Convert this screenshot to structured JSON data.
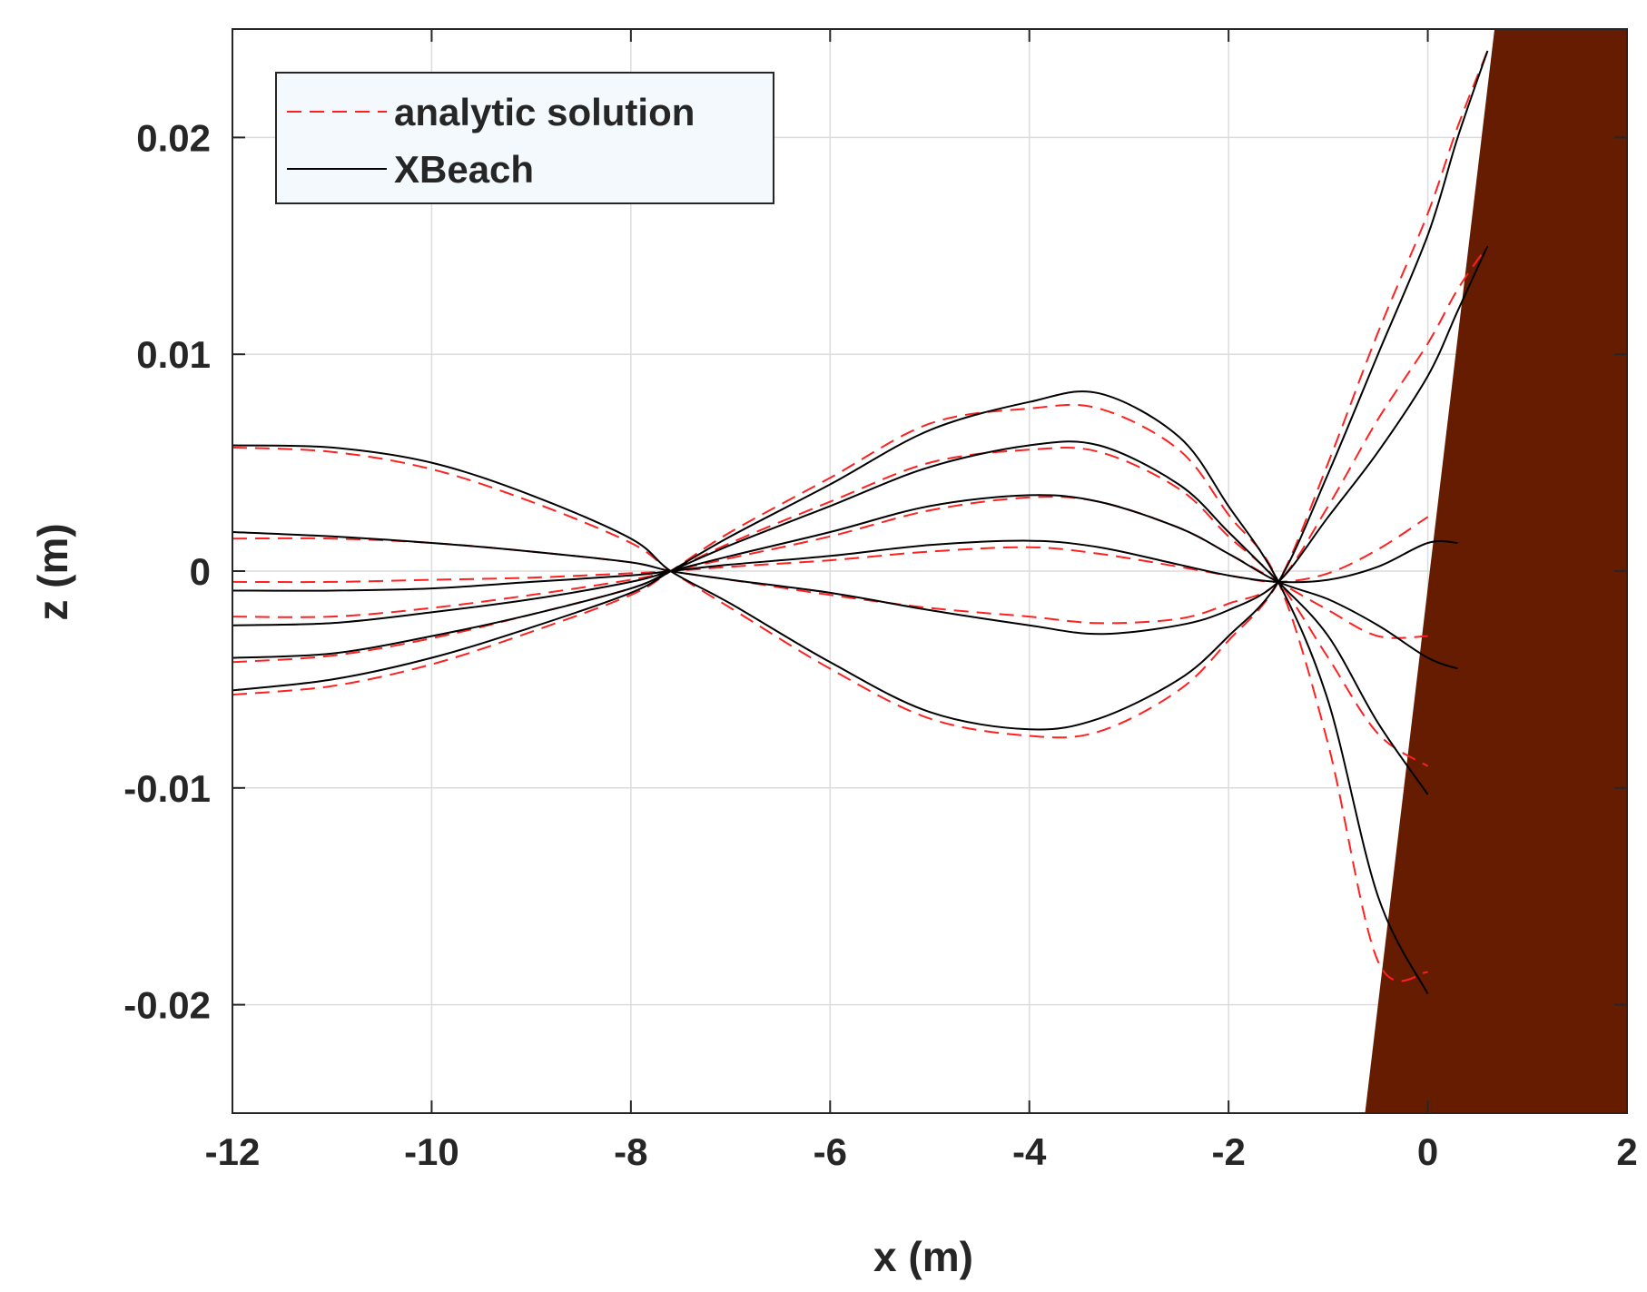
{
  "chart_data": {
    "type": "line",
    "xlabel": "x (m)",
    "ylabel": "z (m)",
    "xlim": [
      -12,
      2
    ],
    "ylim": [
      -0.025,
      0.025
    ],
    "xticks": [
      -12,
      -10,
      -8,
      -6,
      -4,
      -2,
      0,
      2
    ],
    "xtick_labels": [
      "-12",
      "-10",
      "-8",
      "-6",
      "-4",
      "-2",
      "0",
      "2"
    ],
    "yticks": [
      -0.02,
      -0.01,
      0,
      0.01,
      0.02
    ],
    "ytick_labels": [
      "-0.02",
      "-0.01",
      "0",
      "0.01",
      "0.02"
    ],
    "grid": true,
    "legend_position": "top-left",
    "legend": [
      {
        "label": "analytic solution",
        "style": "dashed",
        "color": "#ff2020"
      },
      {
        "label": "XBeach",
        "style": "solid",
        "color": "#000000"
      }
    ],
    "bed": {
      "color": "#661c00",
      "x": [
        -0.63,
        0.67
      ],
      "z": [
        -0.025,
        0.025
      ]
    },
    "series": [
      {
        "legend_label": "XBeach",
        "x": [
          -12,
          -11,
          -10,
          -9,
          -8,
          -7.6,
          -7,
          -6,
          -5,
          -4,
          -3.3,
          -2.5,
          -2,
          -1.5,
          -1,
          -0.5,
          0,
          0.3,
          0.6
        ],
        "curves": [
          [
            0.0058,
            0.0057,
            0.005,
            0.0035,
            0.0015,
            0.0,
            -0.0015,
            -0.0042,
            -0.0065,
            -0.0073,
            -0.0068,
            -0.005,
            -0.003,
            -0.0005,
            0.0045,
            0.01,
            0.0155,
            0.02,
            0.024
          ],
          [
            0.0018,
            0.0016,
            0.0013,
            0.0009,
            0.0004,
            0.0,
            -0.0004,
            -0.001,
            -0.0018,
            -0.0025,
            -0.0029,
            -0.0025,
            -0.0018,
            -0.0005,
            0.0025,
            0.0055,
            0.009,
            0.012,
            0.015
          ],
          [
            -0.0009,
            -0.0009,
            -0.0008,
            -0.0005,
            -0.0002,
            0.0,
            0.0003,
            0.0007,
            0.0012,
            0.0014,
            0.0011,
            0.0003,
            -0.0002,
            -0.0005,
            -0.0004,
            0.0002,
            0.0013,
            0.0013
          ],
          [
            -0.0025,
            -0.0024,
            -0.0019,
            -0.0013,
            -0.0005,
            0.0,
            0.0007,
            0.0018,
            0.003,
            0.0035,
            0.0032,
            0.002,
            0.0008,
            -0.0005,
            -0.0013,
            -0.0025,
            -0.004,
            -0.0045
          ],
          [
            -0.004,
            -0.0038,
            -0.003,
            -0.002,
            -0.0008,
            0.0,
            0.0012,
            0.003,
            0.0048,
            0.0058,
            0.0058,
            0.004,
            0.0018,
            -0.0005,
            -0.003,
            -0.007,
            -0.0103
          ],
          [
            -0.0055,
            -0.005,
            -0.004,
            -0.0026,
            -0.001,
            0.0,
            0.0016,
            0.004,
            0.0065,
            0.0078,
            0.0082,
            0.0062,
            0.003,
            -0.0005,
            -0.006,
            -0.015,
            -0.0195
          ]
        ]
      },
      {
        "legend_label": "analytic solution",
        "x": [
          -12,
          -11,
          -10,
          -9,
          -8,
          -7.6,
          -7,
          -6,
          -5,
          -4,
          -3.3,
          -2.5,
          -2,
          -1.5,
          -1,
          -0.5,
          0,
          0.3,
          0.6
        ],
        "curves": [
          [
            0.0057,
            0.0055,
            0.0047,
            0.0032,
            0.0013,
            0.0,
            -0.0017,
            -0.0045,
            -0.0068,
            -0.0076,
            -0.0074,
            -0.0055,
            -0.0032,
            -0.0005,
            0.005,
            0.011,
            0.0165,
            0.0205,
            0.024
          ],
          [
            0.0015,
            0.0015,
            0.0013,
            0.0009,
            0.0004,
            0.0,
            -0.0004,
            -0.0011,
            -0.0017,
            -0.0021,
            -0.0024,
            -0.0022,
            -0.0015,
            -0.0005,
            0.003,
            0.007,
            0.0105,
            0.013,
            0.015
          ],
          [
            -0.0005,
            -0.0005,
            -0.0004,
            -0.0003,
            -0.0001,
            0.0,
            0.0002,
            0.0005,
            0.0009,
            0.0011,
            0.0008,
            0.0002,
            -0.0002,
            -0.0005,
            -0.0001,
            0.001,
            0.0025
          ],
          [
            -0.0021,
            -0.0021,
            -0.0017,
            -0.0011,
            -0.0004,
            0.0,
            0.0006,
            0.0016,
            0.0028,
            0.0034,
            0.0032,
            0.002,
            0.0008,
            -0.0005,
            -0.0018,
            -0.003,
            -0.003
          ],
          [
            -0.0042,
            -0.0039,
            -0.0031,
            -0.002,
            -0.0008,
            0.0,
            0.0013,
            0.0032,
            0.005,
            0.0056,
            0.0055,
            0.0038,
            0.0016,
            -0.0005,
            -0.004,
            -0.0075,
            -0.009
          ],
          [
            -0.0057,
            -0.0053,
            -0.0043,
            -0.0028,
            -0.0011,
            0.0,
            0.0018,
            0.0043,
            0.0068,
            0.0075,
            0.0075,
            0.0056,
            0.0026,
            -0.0005,
            -0.008,
            -0.018,
            -0.0185
          ]
        ]
      }
    ]
  }
}
